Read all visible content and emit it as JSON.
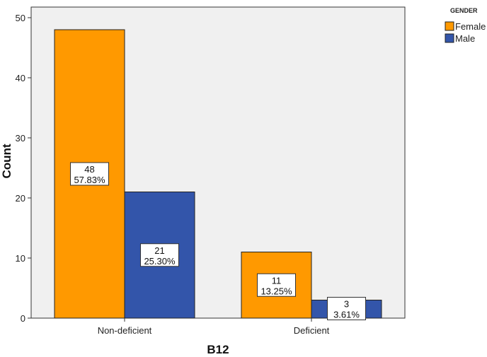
{
  "chart_data": {
    "type": "bar",
    "categories": [
      "Non-deficient",
      "Deficient"
    ],
    "series": [
      {
        "name": "Female",
        "color": "#FF9900",
        "values": [
          48,
          11
        ],
        "labels": [
          "57.83%",
          "13.25%"
        ]
      },
      {
        "name": "Male",
        "color": "#3355AA",
        "values": [
          21,
          3
        ],
        "labels": [
          "25.30%",
          "3.61%"
        ]
      }
    ],
    "xlabel": "B12",
    "ylabel": "Count",
    "ylim": [
      0,
      50
    ],
    "yticks": [
      0,
      10,
      20,
      30,
      40,
      50
    ],
    "legend_title": "GENDER",
    "legend_position": "top-right",
    "plot_background": "#F0F0F0",
    "grid": false
  }
}
